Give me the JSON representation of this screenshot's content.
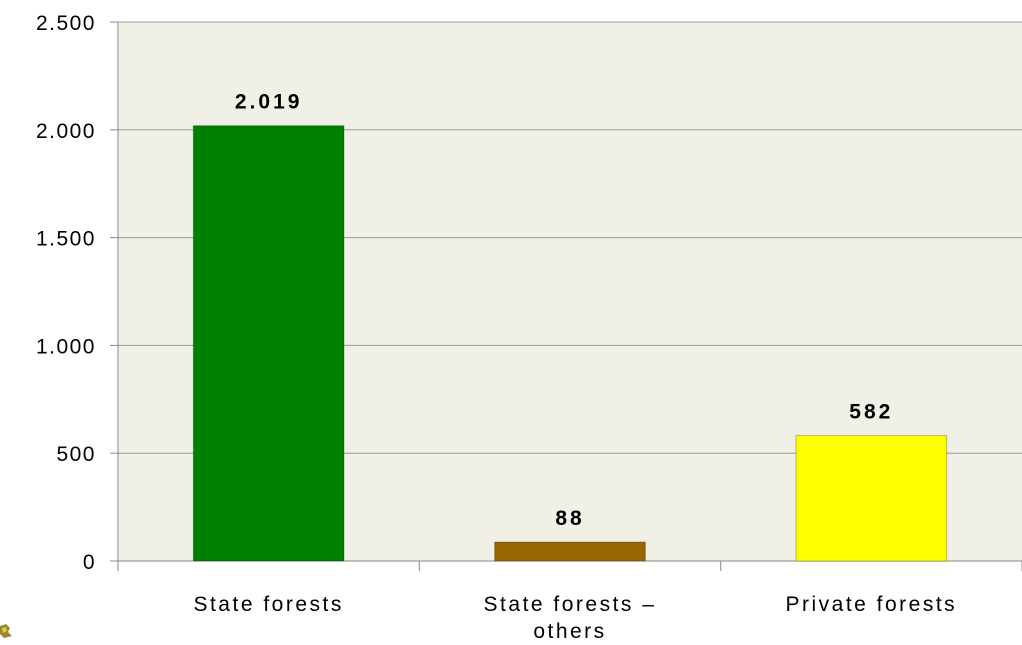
{
  "chart_data": {
    "type": "bar",
    "categories": [
      [
        "State forests"
      ],
      [
        "State forests –",
        "others"
      ],
      [
        "Private forests"
      ]
    ],
    "values": [
      2019,
      88,
      582
    ],
    "data_labels": [
      "2.019",
      "88",
      "582"
    ],
    "bar_colors": [
      "#008000",
      "#996600",
      "#ffff00"
    ],
    "ylim": [
      0,
      2500
    ],
    "yticks": [
      0,
      500,
      1000,
      1500,
      2000,
      2500
    ],
    "ytick_labels": [
      "0",
      "500",
      "1.000",
      "1.500",
      "2.000",
      "2.500"
    ],
    "title": "",
    "xlabel": "",
    "ylabel": "",
    "grid": true,
    "plot_background": "#f0f0e6",
    "gridline_color": "#999999"
  }
}
